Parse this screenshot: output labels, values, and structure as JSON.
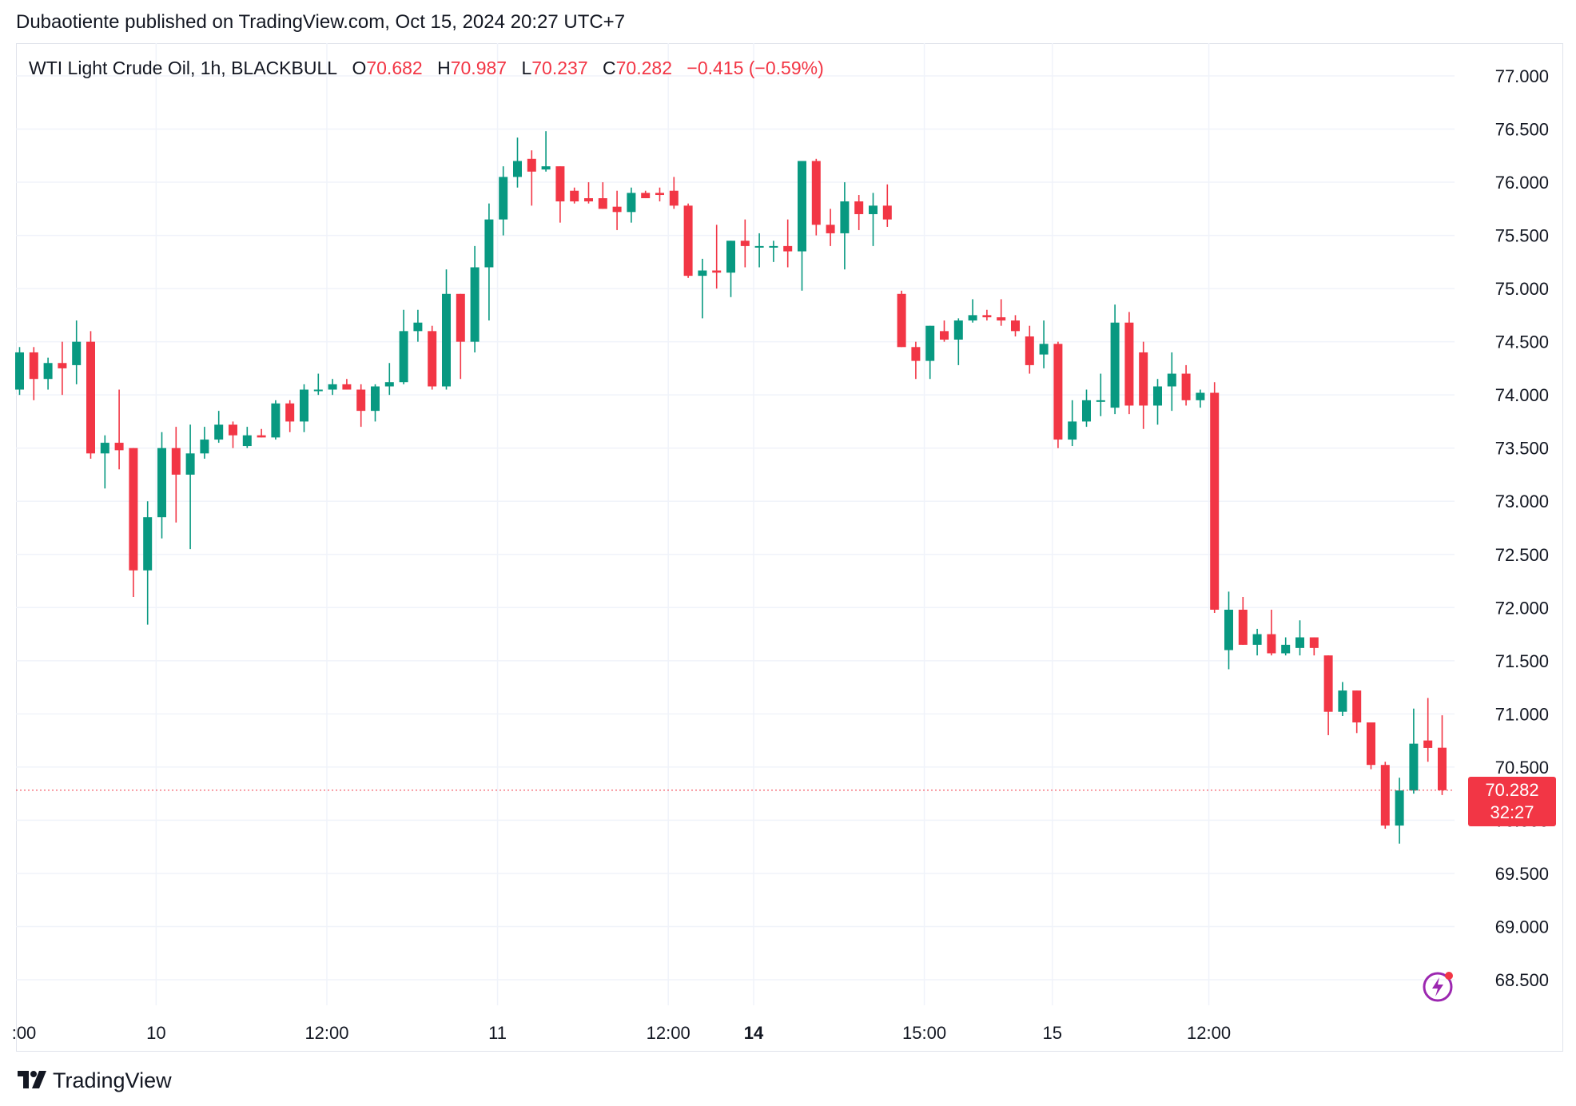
{
  "header": {
    "published": "Dubaotiente published on TradingView.com, Oct 15, 2024 20:27 UTC+7"
  },
  "legend": {
    "symbol": "WTI Light Crude Oil, 1h, BLACKBULL",
    "o_label": "O",
    "o_value": "70.682",
    "h_label": "H",
    "h_value": "70.987",
    "l_label": "L",
    "l_value": "70.237",
    "c_label": "C",
    "c_value": "70.282",
    "change": "−0.415 (−0.59%)"
  },
  "last_price": {
    "price": "70.282",
    "countdown": "32:27"
  },
  "footer": {
    "brand": "TradingView"
  },
  "icons": {
    "logo": "tradingview-logo-icon",
    "alert": "lightning-bolt-icon"
  },
  "colors": {
    "up": "#089981",
    "down": "#f23645",
    "grid": "#f0f3fa",
    "text": "#131722"
  },
  "chart_data": {
    "type": "candlestick",
    "title": "WTI Light Crude Oil, 1h, BLACKBULL",
    "ylim": [
      68.2,
      77.3
    ],
    "grid": true,
    "y_ticks": [
      "77.000",
      "76.500",
      "76.000",
      "75.500",
      "75.000",
      "74.500",
      "74.000",
      "73.500",
      "73.000",
      "72.500",
      "72.000",
      "71.500",
      "71.000",
      "70.500",
      "70.000",
      "69.500",
      "69.000",
      "68.500"
    ],
    "x_ticks": [
      {
        "index": -0.5,
        "label": ":00",
        "bold": false
      },
      {
        "index": 9.6,
        "label": "10",
        "bold": false
      },
      {
        "index": 21.6,
        "label": "12:00",
        "bold": false
      },
      {
        "index": 33.6,
        "label": "11",
        "bold": false
      },
      {
        "index": 45.6,
        "label": "12:00",
        "bold": false
      },
      {
        "index": 51.6,
        "label": "14",
        "bold": true
      },
      {
        "index": 63.6,
        "label": "15:00",
        "bold": false
      },
      {
        "index": 72.6,
        "label": "15",
        "bold": false
      },
      {
        "index": 83.6,
        "label": "12:00",
        "bold": false
      }
    ],
    "candles": [
      {
        "o": 74.05,
        "h": 74.45,
        "l": 74.0,
        "c": 74.4
      },
      {
        "o": 74.4,
        "h": 74.45,
        "l": 73.95,
        "c": 74.15
      },
      {
        "o": 74.15,
        "h": 74.35,
        "l": 74.05,
        "c": 74.3
      },
      {
        "o": 74.3,
        "h": 74.5,
        "l": 74.0,
        "c": 74.25
      },
      {
        "o": 74.28,
        "h": 74.7,
        "l": 74.1,
        "c": 74.5
      },
      {
        "o": 74.5,
        "h": 74.6,
        "l": 73.4,
        "c": 73.45
      },
      {
        "o": 73.45,
        "h": 73.62,
        "l": 73.12,
        "c": 73.55
      },
      {
        "o": 73.55,
        "h": 74.05,
        "l": 73.3,
        "c": 73.48
      },
      {
        "o": 73.5,
        "h": 73.5,
        "l": 72.1,
        "c": 72.35
      },
      {
        "o": 72.35,
        "h": 73.0,
        "l": 71.84,
        "c": 72.85
      },
      {
        "o": 72.85,
        "h": 73.65,
        "l": 72.65,
        "c": 73.5
      },
      {
        "o": 73.5,
        "h": 73.7,
        "l": 72.8,
        "c": 73.25
      },
      {
        "o": 73.25,
        "h": 73.72,
        "l": 72.55,
        "c": 73.45
      },
      {
        "o": 73.45,
        "h": 73.7,
        "l": 73.4,
        "c": 73.58
      },
      {
        "o": 73.58,
        "h": 73.85,
        "l": 73.55,
        "c": 73.72
      },
      {
        "o": 73.72,
        "h": 73.75,
        "l": 73.5,
        "c": 73.62
      },
      {
        "o": 73.52,
        "h": 73.7,
        "l": 73.5,
        "c": 73.62
      },
      {
        "o": 73.62,
        "h": 73.68,
        "l": 73.6,
        "c": 73.6
      },
      {
        "o": 73.6,
        "h": 73.95,
        "l": 73.58,
        "c": 73.92
      },
      {
        "o": 73.92,
        "h": 73.95,
        "l": 73.65,
        "c": 73.75
      },
      {
        "o": 73.75,
        "h": 74.1,
        "l": 73.65,
        "c": 74.05
      },
      {
        "o": 74.05,
        "h": 74.2,
        "l": 74.0,
        "c": 74.05
      },
      {
        "o": 74.05,
        "h": 74.15,
        "l": 74.0,
        "c": 74.1
      },
      {
        "o": 74.1,
        "h": 74.15,
        "l": 74.05,
        "c": 74.05
      },
      {
        "o": 74.05,
        "h": 74.1,
        "l": 73.7,
        "c": 73.85
      },
      {
        "o": 73.85,
        "h": 74.1,
        "l": 73.75,
        "c": 74.08
      },
      {
        "o": 74.08,
        "h": 74.3,
        "l": 74.0,
        "c": 74.12
      },
      {
        "o": 74.12,
        "h": 74.8,
        "l": 74.1,
        "c": 74.6
      },
      {
        "o": 74.6,
        "h": 74.8,
        "l": 74.5,
        "c": 74.68
      },
      {
        "o": 74.6,
        "h": 74.65,
        "l": 74.05,
        "c": 74.08
      },
      {
        "o": 74.08,
        "h": 75.18,
        "l": 74.05,
        "c": 74.95
      },
      {
        "o": 74.95,
        "h": 74.95,
        "l": 74.15,
        "c": 74.5
      },
      {
        "o": 74.5,
        "h": 75.4,
        "l": 74.4,
        "c": 75.2
      },
      {
        "o": 75.2,
        "h": 75.8,
        "l": 74.7,
        "c": 75.65
      },
      {
        "o": 75.65,
        "h": 76.15,
        "l": 75.5,
        "c": 76.05
      },
      {
        "o": 76.05,
        "h": 76.42,
        "l": 75.95,
        "c": 76.2
      },
      {
        "o": 76.22,
        "h": 76.3,
        "l": 75.78,
        "c": 76.1
      },
      {
        "o": 76.12,
        "h": 76.48,
        "l": 76.1,
        "c": 76.15
      },
      {
        "o": 76.15,
        "h": 76.15,
        "l": 75.62,
        "c": 75.82
      },
      {
        "o": 75.92,
        "h": 75.95,
        "l": 75.8,
        "c": 75.82
      },
      {
        "o": 75.85,
        "h": 76.0,
        "l": 75.8,
        "c": 75.82
      },
      {
        "o": 75.85,
        "h": 76.0,
        "l": 75.75,
        "c": 75.75
      },
      {
        "o": 75.77,
        "h": 75.92,
        "l": 75.55,
        "c": 75.72
      },
      {
        "o": 75.72,
        "h": 75.95,
        "l": 75.62,
        "c": 75.9
      },
      {
        "o": 75.9,
        "h": 75.92,
        "l": 75.85,
        "c": 75.85
      },
      {
        "o": 75.9,
        "h": 75.95,
        "l": 75.82,
        "c": 75.88
      },
      {
        "o": 75.92,
        "h": 76.05,
        "l": 75.75,
        "c": 75.78
      },
      {
        "o": 75.78,
        "h": 75.8,
        "l": 75.1,
        "c": 75.12
      },
      {
        "o": 75.12,
        "h": 75.28,
        "l": 74.72,
        "c": 75.17
      },
      {
        "o": 75.17,
        "h": 75.6,
        "l": 75.0,
        "c": 75.15
      },
      {
        "o": 75.15,
        "h": 75.45,
        "l": 74.92,
        "c": 75.45
      },
      {
        "o": 75.45,
        "h": 75.65,
        "l": 75.2,
        "c": 75.4
      },
      {
        "o": 75.4,
        "h": 75.52,
        "l": 75.2,
        "c": 75.4
      },
      {
        "o": 75.4,
        "h": 75.45,
        "l": 75.25,
        "c": 75.4
      },
      {
        "o": 75.4,
        "h": 75.65,
        "l": 75.2,
        "c": 75.35
      },
      {
        "o": 75.35,
        "h": 76.2,
        "l": 74.98,
        "c": 76.2
      },
      {
        "o": 76.2,
        "h": 76.22,
        "l": 75.5,
        "c": 75.6
      },
      {
        "o": 75.6,
        "h": 75.75,
        "l": 75.4,
        "c": 75.52
      },
      {
        "o": 75.52,
        "h": 76.0,
        "l": 75.18,
        "c": 75.82
      },
      {
        "o": 75.82,
        "h": 75.88,
        "l": 75.55,
        "c": 75.7
      },
      {
        "o": 75.7,
        "h": 75.9,
        "l": 75.4,
        "c": 75.78
      },
      {
        "o": 75.78,
        "h": 75.98,
        "l": 75.58,
        "c": 75.65
      },
      {
        "o": 74.95,
        "h": 74.98,
        "l": 74.45,
        "c": 74.45
      },
      {
        "o": 74.45,
        "h": 74.5,
        "l": 74.15,
        "c": 74.32
      },
      {
        "o": 74.32,
        "h": 74.65,
        "l": 74.15,
        "c": 74.65
      },
      {
        "o": 74.6,
        "h": 74.7,
        "l": 74.5,
        "c": 74.52
      },
      {
        "o": 74.52,
        "h": 74.72,
        "l": 74.28,
        "c": 74.7
      },
      {
        "o": 74.7,
        "h": 74.9,
        "l": 74.68,
        "c": 74.75
      },
      {
        "o": 74.75,
        "h": 74.8,
        "l": 74.7,
        "c": 74.73
      },
      {
        "o": 74.73,
        "h": 74.9,
        "l": 74.65,
        "c": 74.7
      },
      {
        "o": 74.7,
        "h": 74.75,
        "l": 74.55,
        "c": 74.6
      },
      {
        "o": 74.55,
        "h": 74.65,
        "l": 74.2,
        "c": 74.28
      },
      {
        "o": 74.38,
        "h": 74.7,
        "l": 74.25,
        "c": 74.48
      },
      {
        "o": 74.48,
        "h": 74.5,
        "l": 73.5,
        "c": 73.58
      },
      {
        "o": 73.58,
        "h": 73.95,
        "l": 73.52,
        "c": 73.75
      },
      {
        "o": 73.75,
        "h": 74.05,
        "l": 73.7,
        "c": 73.95
      },
      {
        "o": 73.95,
        "h": 74.2,
        "l": 73.8,
        "c": 73.95
      },
      {
        "o": 73.88,
        "h": 74.85,
        "l": 73.82,
        "c": 74.68
      },
      {
        "o": 74.68,
        "h": 74.78,
        "l": 73.82,
        "c": 73.9
      },
      {
        "o": 74.4,
        "h": 74.5,
        "l": 73.68,
        "c": 73.9
      },
      {
        "o": 73.9,
        "h": 74.15,
        "l": 73.72,
        "c": 74.08
      },
      {
        "o": 74.08,
        "h": 74.4,
        "l": 73.85,
        "c": 74.2
      },
      {
        "o": 74.2,
        "h": 74.28,
        "l": 73.9,
        "c": 73.95
      },
      {
        "o": 73.95,
        "h": 74.05,
        "l": 73.88,
        "c": 74.02
      },
      {
        "o": 74.02,
        "h": 74.12,
        "l": 71.95,
        "c": 71.98
      },
      {
        "o": 71.6,
        "h": 72.15,
        "l": 71.42,
        "c": 71.98
      },
      {
        "o": 71.98,
        "h": 72.1,
        "l": 71.65,
        "c": 71.65
      },
      {
        "o": 71.65,
        "h": 71.8,
        "l": 71.55,
        "c": 71.75
      },
      {
        "o": 71.75,
        "h": 71.98,
        "l": 71.55,
        "c": 71.57
      },
      {
        "o": 71.57,
        "h": 71.72,
        "l": 71.55,
        "c": 71.65
      },
      {
        "o": 71.62,
        "h": 71.88,
        "l": 71.55,
        "c": 71.72
      },
      {
        "o": 71.72,
        "h": 71.72,
        "l": 71.55,
        "c": 71.62
      },
      {
        "o": 71.55,
        "h": 71.55,
        "l": 70.8,
        "c": 71.02
      },
      {
        "o": 71.02,
        "h": 71.3,
        "l": 70.98,
        "c": 71.22
      },
      {
        "o": 71.22,
        "h": 71.22,
        "l": 70.82,
        "c": 70.92
      },
      {
        "o": 70.92,
        "h": 70.92,
        "l": 70.48,
        "c": 70.52
      },
      {
        "o": 70.52,
        "h": 70.55,
        "l": 69.92,
        "c": 69.95
      },
      {
        "o": 69.95,
        "h": 70.4,
        "l": 69.78,
        "c": 70.28
      },
      {
        "o": 70.28,
        "h": 71.05,
        "l": 70.25,
        "c": 70.72
      },
      {
        "o": 70.75,
        "h": 71.15,
        "l": 70.55,
        "c": 70.68
      },
      {
        "o": 70.682,
        "h": 70.987,
        "l": 70.237,
        "c": 70.282
      }
    ]
  }
}
